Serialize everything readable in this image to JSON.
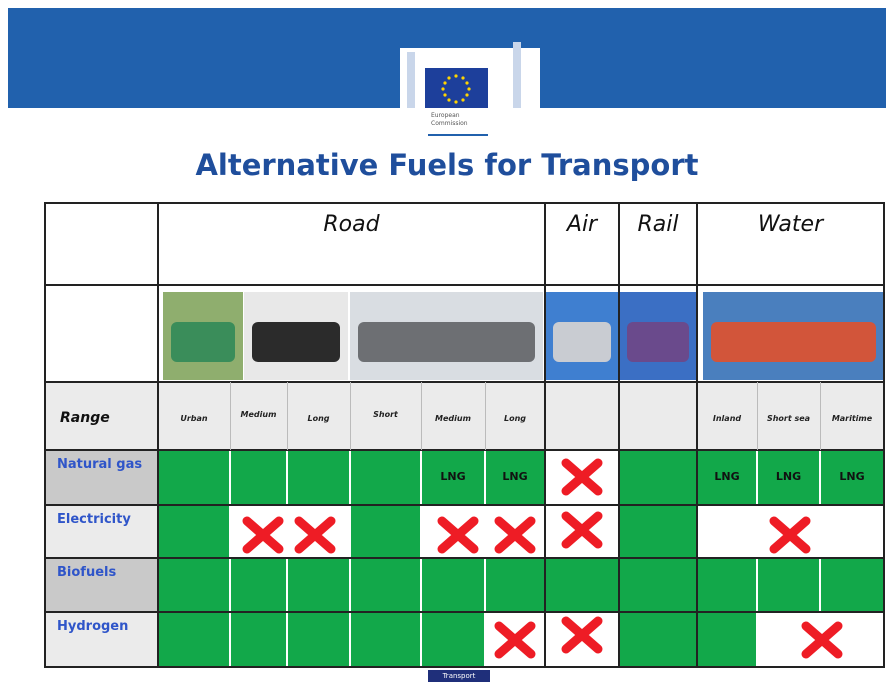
{
  "header": {
    "logo_text": [
      "European",
      "Commission"
    ]
  },
  "title": "Alternative Fuels for Transport",
  "table": {
    "modes": [
      "Road",
      "Air",
      "Rail",
      "Water"
    ],
    "range_label": "Range",
    "ranges": [
      "Urban",
      "Medium",
      "Long",
      "Short",
      "Medium",
      "Long",
      "Inland",
      "Short sea",
      "Maritime"
    ],
    "rows": [
      {
        "label": "Natural gas",
        "notes": [
          "LNG",
          "LNG",
          "LNG",
          "LNG",
          "LNG"
        ]
      },
      {
        "label": "Electricity"
      },
      {
        "label": "Biofuels"
      },
      {
        "label": "Hydrogen"
      }
    ]
  },
  "footer": "Transport"
}
